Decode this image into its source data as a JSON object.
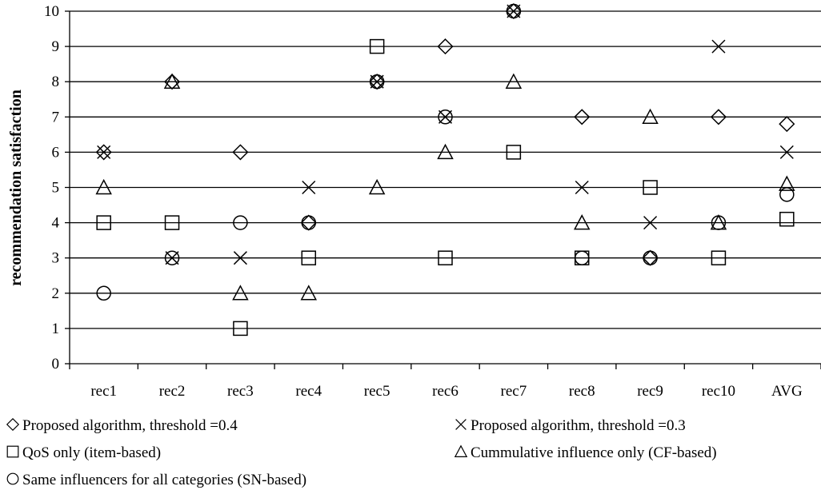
{
  "chart_data": {
    "type": "scatter",
    "title": "",
    "xlabel": "",
    "ylabel": "recommendation satisfaction",
    "ylim": [
      0,
      10
    ],
    "yticks": [
      "0",
      "1",
      "2",
      "3",
      "4",
      "5",
      "6",
      "7",
      "8",
      "9",
      "10"
    ],
    "categories": [
      "rec1",
      "rec2",
      "rec3",
      "rec4",
      "rec5",
      "rec6",
      "rec7",
      "rec8",
      "rec9",
      "rec10",
      "AVG"
    ],
    "grid": true,
    "legend_position": "bottom",
    "series": [
      {
        "name": "Proposed algorithm, threshold =0.4",
        "marker": "diamond",
        "values": [
          6,
          8,
          6,
          4,
          8,
          9,
          10,
          7,
          3,
          7,
          6.8
        ]
      },
      {
        "name": "Proposed algorithm, threshold =0.3",
        "marker": "x",
        "values": [
          6,
          3,
          3,
          5,
          8,
          7,
          10,
          5,
          4,
          9,
          6
        ]
      },
      {
        "name": "QoS only (item-based)",
        "marker": "square",
        "values": [
          4,
          4,
          1,
          3,
          9,
          3,
          6,
          3,
          5,
          3,
          4.1
        ]
      },
      {
        "name": "Cummulative influence only (CF-based)",
        "marker": "triangle",
        "values": [
          5,
          8,
          2,
          2,
          5,
          6,
          8,
          4,
          7,
          4,
          5.1
        ]
      },
      {
        "name": "Same influencers for all categories (SN-based)",
        "marker": "circle",
        "values": [
          2,
          3,
          4,
          4,
          8,
          7,
          10,
          3,
          3,
          4,
          4.8
        ]
      }
    ]
  }
}
